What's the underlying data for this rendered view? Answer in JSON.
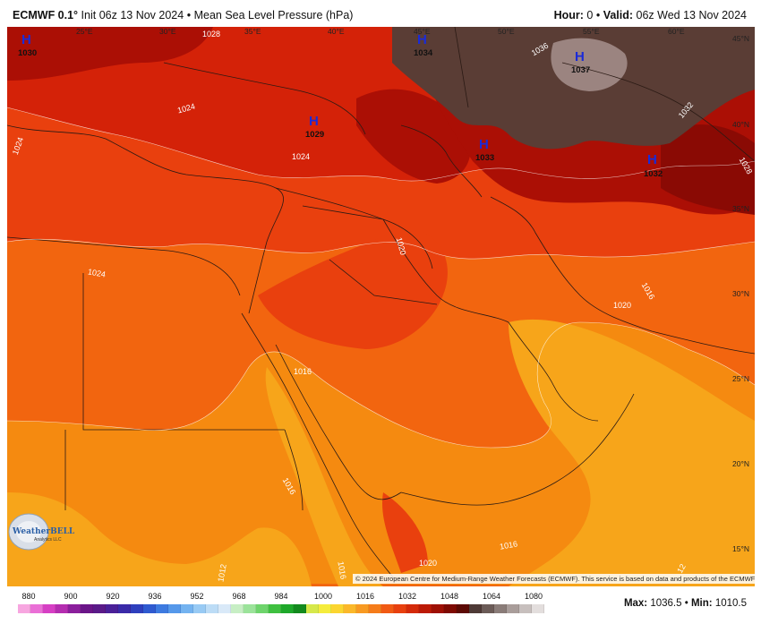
{
  "header": {
    "model": "ECMWF 0.1°",
    "init": "Init 06z 13 Nov 2024",
    "sep": "•",
    "field": "Mean Sea Level Pressure (hPa)",
    "hour_label": "Hour:",
    "hour_value": "0",
    "valid_label": "Valid:",
    "valid_value": "06z Wed 13 Nov 2024"
  },
  "longitude_labels": [
    "25°E",
    "30°E",
    "35°E",
    "40°E",
    "45°E",
    "50°E",
    "55°E",
    "60°E"
  ],
  "latitude_labels": [
    "45°N",
    "40°N",
    "35°N",
    "30°N",
    "25°N",
    "20°N",
    "15°N"
  ],
  "highs": [
    {
      "symbol": "H",
      "value": "1030"
    },
    {
      "symbol": "H",
      "value": "1029"
    },
    {
      "symbol": "H",
      "value": "1034"
    },
    {
      "symbol": "H",
      "value": "1037"
    },
    {
      "symbol": "H",
      "value": "1033"
    },
    {
      "symbol": "H",
      "value": "1032"
    }
  ],
  "isobar_labels": [
    "1028",
    "1024",
    "1024",
    "1024",
    "1020",
    "1020",
    "1024",
    "1016",
    "1016",
    "1016",
    "1016",
    "1012",
    "1020",
    "1028",
    "1032",
    "1036",
    "1016",
    "12"
  ],
  "copyright": "© 2024 European Centre for Medium-Range Weather Forecasts (ECMWF). This service is based on data and products of the ECMWF.",
  "logo": {
    "text": "WeatherBELL",
    "sub": "Analytics LLC"
  },
  "colorbar": {
    "ticks": [
      "880",
      "900",
      "920",
      "936",
      "952",
      "968",
      "984",
      "1000",
      "1016",
      "1032",
      "1048",
      "1064",
      "1080"
    ],
    "colors": [
      "#f7a6e0",
      "#ea6fd6",
      "#d63fc4",
      "#b42db0",
      "#8b1f9c",
      "#6a1588",
      "#5a1a88",
      "#4a2098",
      "#3a2aa8",
      "#2e3fbd",
      "#2f5ad0",
      "#3d7ae0",
      "#5598ea",
      "#74b3f0",
      "#98caf4",
      "#bcdcf6",
      "#d9e9f8",
      "#c7eec4",
      "#9be39a",
      "#6ed46c",
      "#3fc040",
      "#1ea82a",
      "#138a1e",
      "#d6e84a",
      "#f5ec3c",
      "#fbd530",
      "#fbb82a",
      "#f89a22",
      "#f57c1a",
      "#f15a14",
      "#e8400f",
      "#d42a0a",
      "#bc1a06",
      "#9e1004",
      "#7e0a02",
      "#5c0a04",
      "#4e3a36",
      "#6b5b57",
      "#8a7c78",
      "#a99d9a",
      "#c7bfbd",
      "#e3dedd"
    ]
  },
  "stats": {
    "max_label": "Max:",
    "max_value": "1036.5",
    "sep": "•",
    "min_label": "Min:",
    "min_value": "1010.5"
  },
  "colors": {
    "p1012": "#f7a51a",
    "p1016": "#f58a10",
    "p1020": "#f2650f",
    "p1024": "#e9400e",
    "p1028": "#d42208",
    "p1032": "#ab0f05",
    "p1036": "#5a3d35",
    "p1040": "#9b8480"
  }
}
